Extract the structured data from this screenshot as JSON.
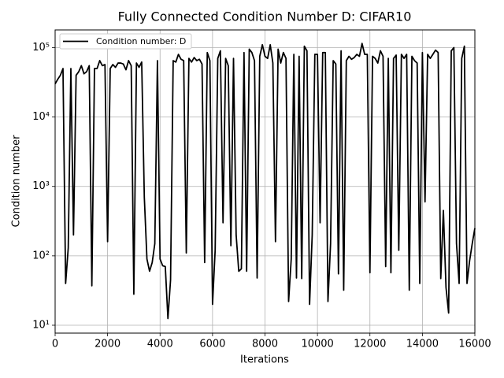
{
  "chart_data": {
    "type": "line",
    "title": "Fully Connected Condition Number D: CIFAR10",
    "xlabel": "Iterations",
    "ylabel": "Condition number",
    "x": [
      0,
      100,
      200,
      300,
      400,
      500,
      600,
      700,
      800,
      900,
      1000,
      1100,
      1200,
      1300,
      1400,
      1500,
      1600,
      1700,
      1800,
      1900,
      2000,
      2100,
      2200,
      2300,
      2400,
      2500,
      2600,
      2700,
      2800,
      2900,
      3000,
      3100,
      3200,
      3300,
      3400,
      3500,
      3600,
      3700,
      3800,
      3900,
      4000,
      4100,
      4200,
      4300,
      4400,
      4500,
      4600,
      4700,
      4800,
      4900,
      5000,
      5100,
      5200,
      5300,
      5400,
      5500,
      5600,
      5700,
      5800,
      5900,
      6000,
      6100,
      6200,
      6300,
      6400,
      6500,
      6600,
      6700,
      6800,
      6900,
      7000,
      7100,
      7200,
      7300,
      7400,
      7500,
      7600,
      7700,
      7800,
      7900,
      8000,
      8100,
      8200,
      8300,
      8400,
      8500,
      8600,
      8700,
      8800,
      8900,
      9000,
      9100,
      9200,
      9300,
      9400,
      9500,
      9600,
      9700,
      9800,
      9900,
      10000,
      10100,
      10200,
      10300,
      10400,
      10500,
      10600,
      10700,
      10800,
      10900,
      11000,
      11100,
      11200,
      11300,
      11400,
      11500,
      11600,
      11700,
      11800,
      11900,
      12000,
      12100,
      12200,
      12300,
      12400,
      12500,
      12600,
      12700,
      12800,
      12900,
      13000,
      13100,
      13200,
      13300,
      13400,
      13500,
      13600,
      13700,
      13800,
      13900,
      14000,
      14100,
      14200,
      14300,
      14400,
      14500,
      14600,
      14700,
      14800,
      14900,
      15000,
      15100,
      15200,
      15300,
      15400,
      15500,
      15600,
      15700,
      15800,
      15900,
      16000
    ],
    "series": [
      {
        "name": "Condition number: D",
        "color": "#000000",
        "values": [
          30000,
          35000,
          40000,
          50000,
          40,
          130,
          50000,
          200,
          40000,
          45000,
          55000,
          42000,
          45000,
          55000,
          37,
          50000,
          50000,
          65000,
          55000,
          57000,
          160,
          50000,
          57000,
          52000,
          60000,
          60000,
          58000,
          48000,
          65000,
          55000,
          28,
          60000,
          52000,
          62000,
          700,
          90,
          60,
          80,
          150,
          65000,
          90,
          72,
          70,
          12.5,
          45,
          65000,
          62000,
          80000,
          68000,
          65000,
          110,
          70000,
          62000,
          72000,
          65000,
          68000,
          58000,
          80,
          85000,
          65000,
          20,
          120,
          70000,
          90000,
          300,
          70000,
          55000,
          140,
          70000,
          200,
          60,
          65,
          85000,
          60,
          95000,
          85000,
          65000,
          48,
          75000,
          110000,
          75000,
          70000,
          110000,
          60000,
          160,
          95000,
          60000,
          85000,
          70000,
          22,
          90,
          80000,
          48,
          75000,
          47,
          105000,
          90000,
          20,
          200,
          80000,
          80000,
          300,
          85000,
          85000,
          22,
          150,
          65000,
          58000,
          55,
          90000,
          32,
          65000,
          75000,
          68000,
          72000,
          80000,
          75000,
          115000,
          80000,
          80000,
          57,
          75000,
          70000,
          60000,
          90000,
          75000,
          70,
          70000,
          57,
          70000,
          78000,
          120,
          80000,
          70000,
          80000,
          32,
          75000,
          65000,
          60000,
          40,
          85000,
          600,
          80000,
          70000,
          80000,
          92000,
          85000,
          47,
          450,
          35,
          15,
          90000,
          100000,
          150,
          40,
          70000,
          105000,
          40,
          85,
          150,
          250
        ]
      }
    ],
    "xlim": [
      0,
      16000
    ],
    "xticks": [
      0,
      2000,
      4000,
      6000,
      8000,
      10000,
      12000,
      14000,
      16000
    ],
    "ylim": [
      7.7,
      180000
    ],
    "yticks": [
      {
        "value": 10,
        "label": "10¹"
      },
      {
        "value": 100,
        "label": "10²"
      },
      {
        "value": 1000,
        "label": "10³"
      },
      {
        "value": 10000,
        "label": "10⁴"
      },
      {
        "value": 100000,
        "label": "10⁵"
      }
    ],
    "log_y": true,
    "grid": true,
    "legend": "upper left"
  }
}
